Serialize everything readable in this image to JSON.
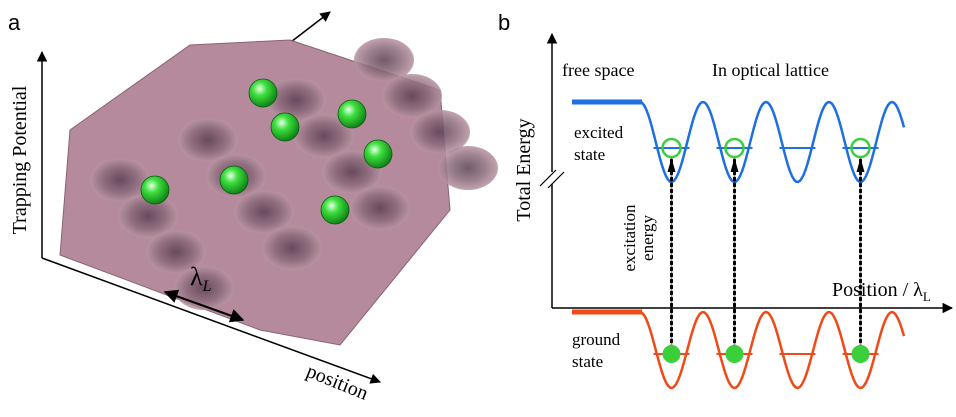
{
  "panel_a": {
    "label": "a",
    "y_axis": "Trapping Potential",
    "x_axis": "position",
    "spacing": {
      "symbol": "λ",
      "subscript": "L"
    }
  },
  "panel_b": {
    "label": "b",
    "y_axis": "Total Energy",
    "x_axis": {
      "text": "Position / λ",
      "subscript": "L"
    },
    "region_left": "free space",
    "region_right": "In optical lattice",
    "excited_state": [
      "excited",
      "state"
    ],
    "ground_state": [
      "ground",
      "state"
    ],
    "transition": [
      "excitation",
      "energy"
    ]
  }
}
